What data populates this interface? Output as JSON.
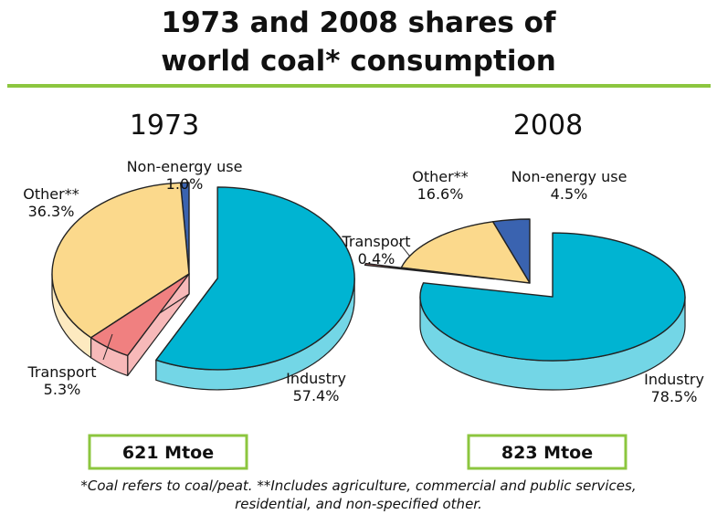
{
  "title": {
    "line1": "1973 and 2008 shares of",
    "line2": "world coal* consumption"
  },
  "footnote": {
    "line1": "*Coal refers to coal/peat. **Includes agriculture, commercial and public services,",
    "line2": "residential, and non-specified other."
  },
  "colors": {
    "rule": "#8cc63f",
    "box_border": "#8cc63f",
    "Industry": "#00b4d2",
    "Transport": "#f08080",
    "Other": "#fbd98c",
    "Non-energy use": "#3a63b0"
  },
  "chart_data": [
    {
      "type": "pie",
      "title": "1973",
      "total": "621 Mtoe",
      "slices": [
        {
          "label": "Industry",
          "value": 57.4,
          "value_label": "57.4%",
          "exploded": true
        },
        {
          "label": "Transport",
          "value": 5.3,
          "value_label": "5.3%",
          "exploded": false
        },
        {
          "label": "Other**",
          "value": 36.3,
          "value_label": "36.3%",
          "exploded": false
        },
        {
          "label": "Non-energy use",
          "value": 1.0,
          "value_label": "1.0%",
          "exploded": false
        }
      ]
    },
    {
      "type": "pie",
      "title": "2008",
      "total": "823 Mtoe",
      "slices": [
        {
          "label": "Industry",
          "value": 78.5,
          "value_label": "78.5%",
          "exploded": true
        },
        {
          "label": "Transport",
          "value": 0.4,
          "value_label": "0.4%",
          "exploded": true
        },
        {
          "label": "Other**",
          "value": 16.6,
          "value_label": "16.6%",
          "exploded": false
        },
        {
          "label": "Non-energy use",
          "value": 4.5,
          "value_label": "4.5%",
          "exploded": false
        }
      ]
    }
  ]
}
